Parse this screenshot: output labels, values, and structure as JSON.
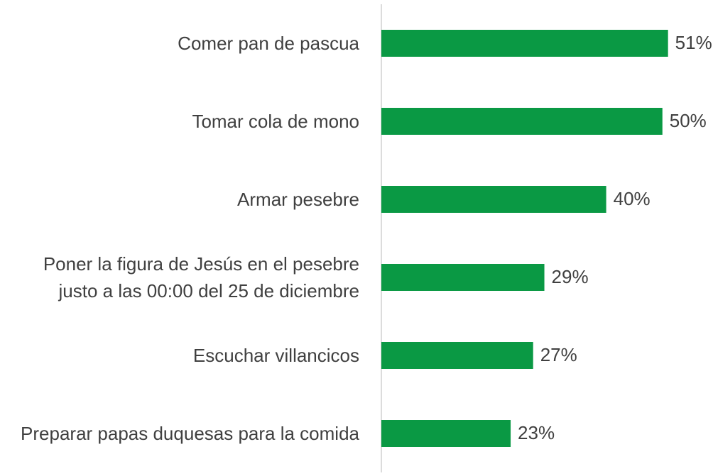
{
  "chart_data": {
    "type": "bar",
    "orientation": "horizontal",
    "categories": [
      "Comer pan de pascua",
      "Tomar cola de mono",
      "Armar pesebre",
      "Poner la figura de Jesús en el pesebre justo a las 00:00 del 25 de diciembre",
      "Escuchar villancicos",
      "Preparar papas duquesas para la comida"
    ],
    "values": [
      51,
      50,
      40,
      29,
      27,
      23
    ],
    "value_labels": [
      "51%",
      "50%",
      "40%",
      "29%",
      "27%",
      "23%"
    ],
    "color": "#0a9944",
    "xlim": [
      0,
      59
    ]
  }
}
